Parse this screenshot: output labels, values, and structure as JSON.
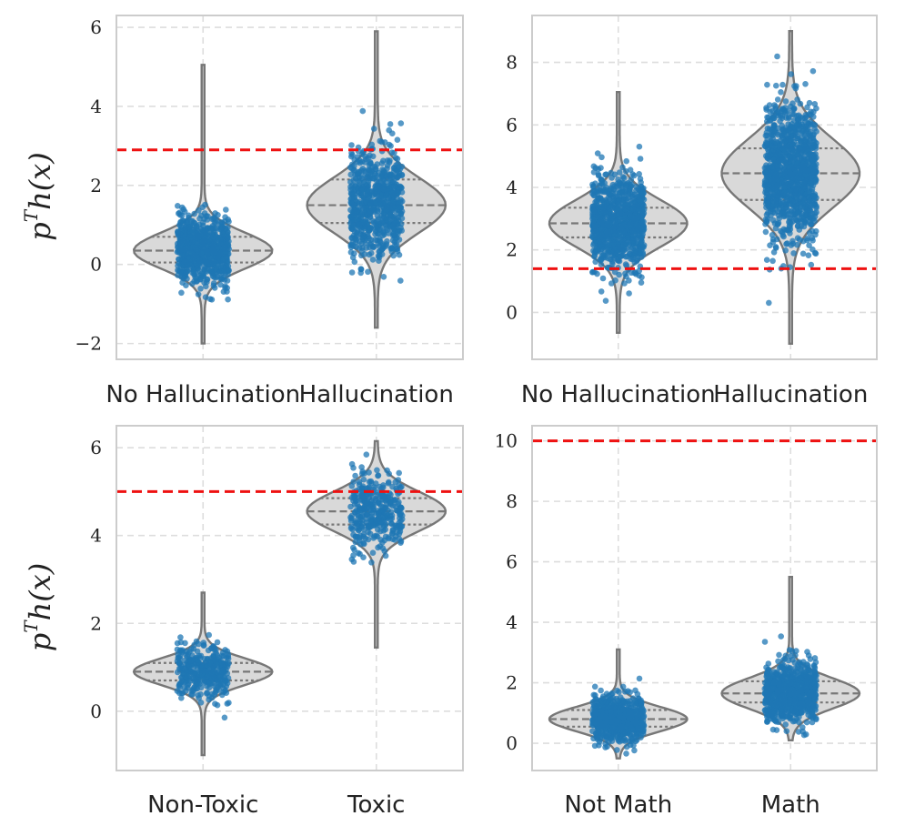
{
  "figure": {
    "colors": {
      "points": "#1f77b4",
      "violin_fill": "#d9d9d9",
      "violin_edge": "#777777",
      "threshold": "#ee1111",
      "grid": "#dddddd",
      "frame": "#cccccc"
    },
    "ylabel_base": "p",
    "ylabel_sup": "T",
    "ylabel_rest": "h(x)"
  },
  "chart_data": [
    {
      "type": "violin",
      "id": "hallucination-a",
      "title": "",
      "ylabel": "p^T h(x)",
      "categories": [
        "No Hallucination",
        "Hallucination"
      ],
      "ylim": [
        -2.4,
        6.3
      ],
      "yticks": [
        -2,
        0,
        2,
        4,
        6
      ],
      "ytick_labels": [
        "−2",
        "0",
        "2",
        "4",
        "6"
      ],
      "grid": true,
      "threshold": 2.9,
      "distributions": [
        {
          "category": "No Hallucination",
          "min": -2.0,
          "q1": 0.05,
          "median": 0.35,
          "q3": 0.7,
          "max": 5.05,
          "mode": 0.35,
          "spread": 0.45,
          "n_points": 700
        },
        {
          "category": "Hallucination",
          "min": -1.6,
          "q1": 1.05,
          "median": 1.5,
          "q3": 2.15,
          "max": 5.9,
          "mode": 1.5,
          "spread": 0.7,
          "n_points": 700
        }
      ]
    },
    {
      "type": "violin",
      "id": "hallucination-b",
      "title": "",
      "ylabel": "",
      "categories": [
        "No Hallucination",
        "Hallucination"
      ],
      "ylim": [
        -1.5,
        9.5
      ],
      "yticks": [
        0,
        2,
        4,
        6,
        8
      ],
      "ytick_labels": [
        "0",
        "2",
        "4",
        "6",
        "8"
      ],
      "grid": true,
      "threshold": 1.4,
      "distributions": [
        {
          "category": "No Hallucination",
          "min": -0.65,
          "q1": 2.4,
          "median": 2.85,
          "q3": 3.35,
          "max": 7.05,
          "mode": 2.85,
          "spread": 0.75,
          "n_points": 900
        },
        {
          "category": "Hallucination",
          "min": -1.0,
          "q1": 3.6,
          "median": 4.45,
          "q3": 5.25,
          "max": 9.0,
          "mode": 4.45,
          "spread": 1.1,
          "n_points": 1100
        }
      ]
    },
    {
      "type": "violin",
      "id": "toxicity",
      "title": "",
      "ylabel": "p^T h(x)",
      "categories": [
        "Non-Toxic",
        "Toxic"
      ],
      "ylim": [
        -1.35,
        6.5
      ],
      "yticks": [
        0,
        2,
        4,
        6
      ],
      "ytick_labels": [
        "0",
        "2",
        "4",
        "6"
      ],
      "grid": true,
      "threshold": 5.0,
      "distributions": [
        {
          "category": "Non-Toxic",
          "min": -1.0,
          "q1": 0.7,
          "median": 0.9,
          "q3": 1.1,
          "max": 2.7,
          "mode": 0.9,
          "spread": 0.3,
          "n_points": 350
        },
        {
          "category": "Toxic",
          "min": 1.45,
          "q1": 4.25,
          "median": 4.55,
          "q3": 4.85,
          "max": 6.15,
          "mode": 4.55,
          "spread": 0.45,
          "n_points": 350
        }
      ]
    },
    {
      "type": "violin",
      "id": "math",
      "title": "",
      "ylabel": "",
      "categories": [
        "Not Math",
        "Math"
      ],
      "ylim": [
        -0.9,
        10.5
      ],
      "yticks": [
        0,
        2,
        4,
        6,
        8,
        10
      ],
      "ytick_labels": [
        "0",
        "2",
        "4",
        "6",
        "8",
        "10"
      ],
      "grid": true,
      "threshold": 10.0,
      "distributions": [
        {
          "category": "Not Math",
          "min": -0.5,
          "q1": 0.55,
          "median": 0.8,
          "q3": 1.1,
          "max": 3.1,
          "mode": 0.8,
          "spread": 0.4,
          "n_points": 650
        },
        {
          "category": "Math",
          "min": 0.1,
          "q1": 1.35,
          "median": 1.65,
          "q3": 2.05,
          "max": 5.5,
          "mode": 1.65,
          "spread": 0.5,
          "n_points": 750
        }
      ]
    }
  ]
}
